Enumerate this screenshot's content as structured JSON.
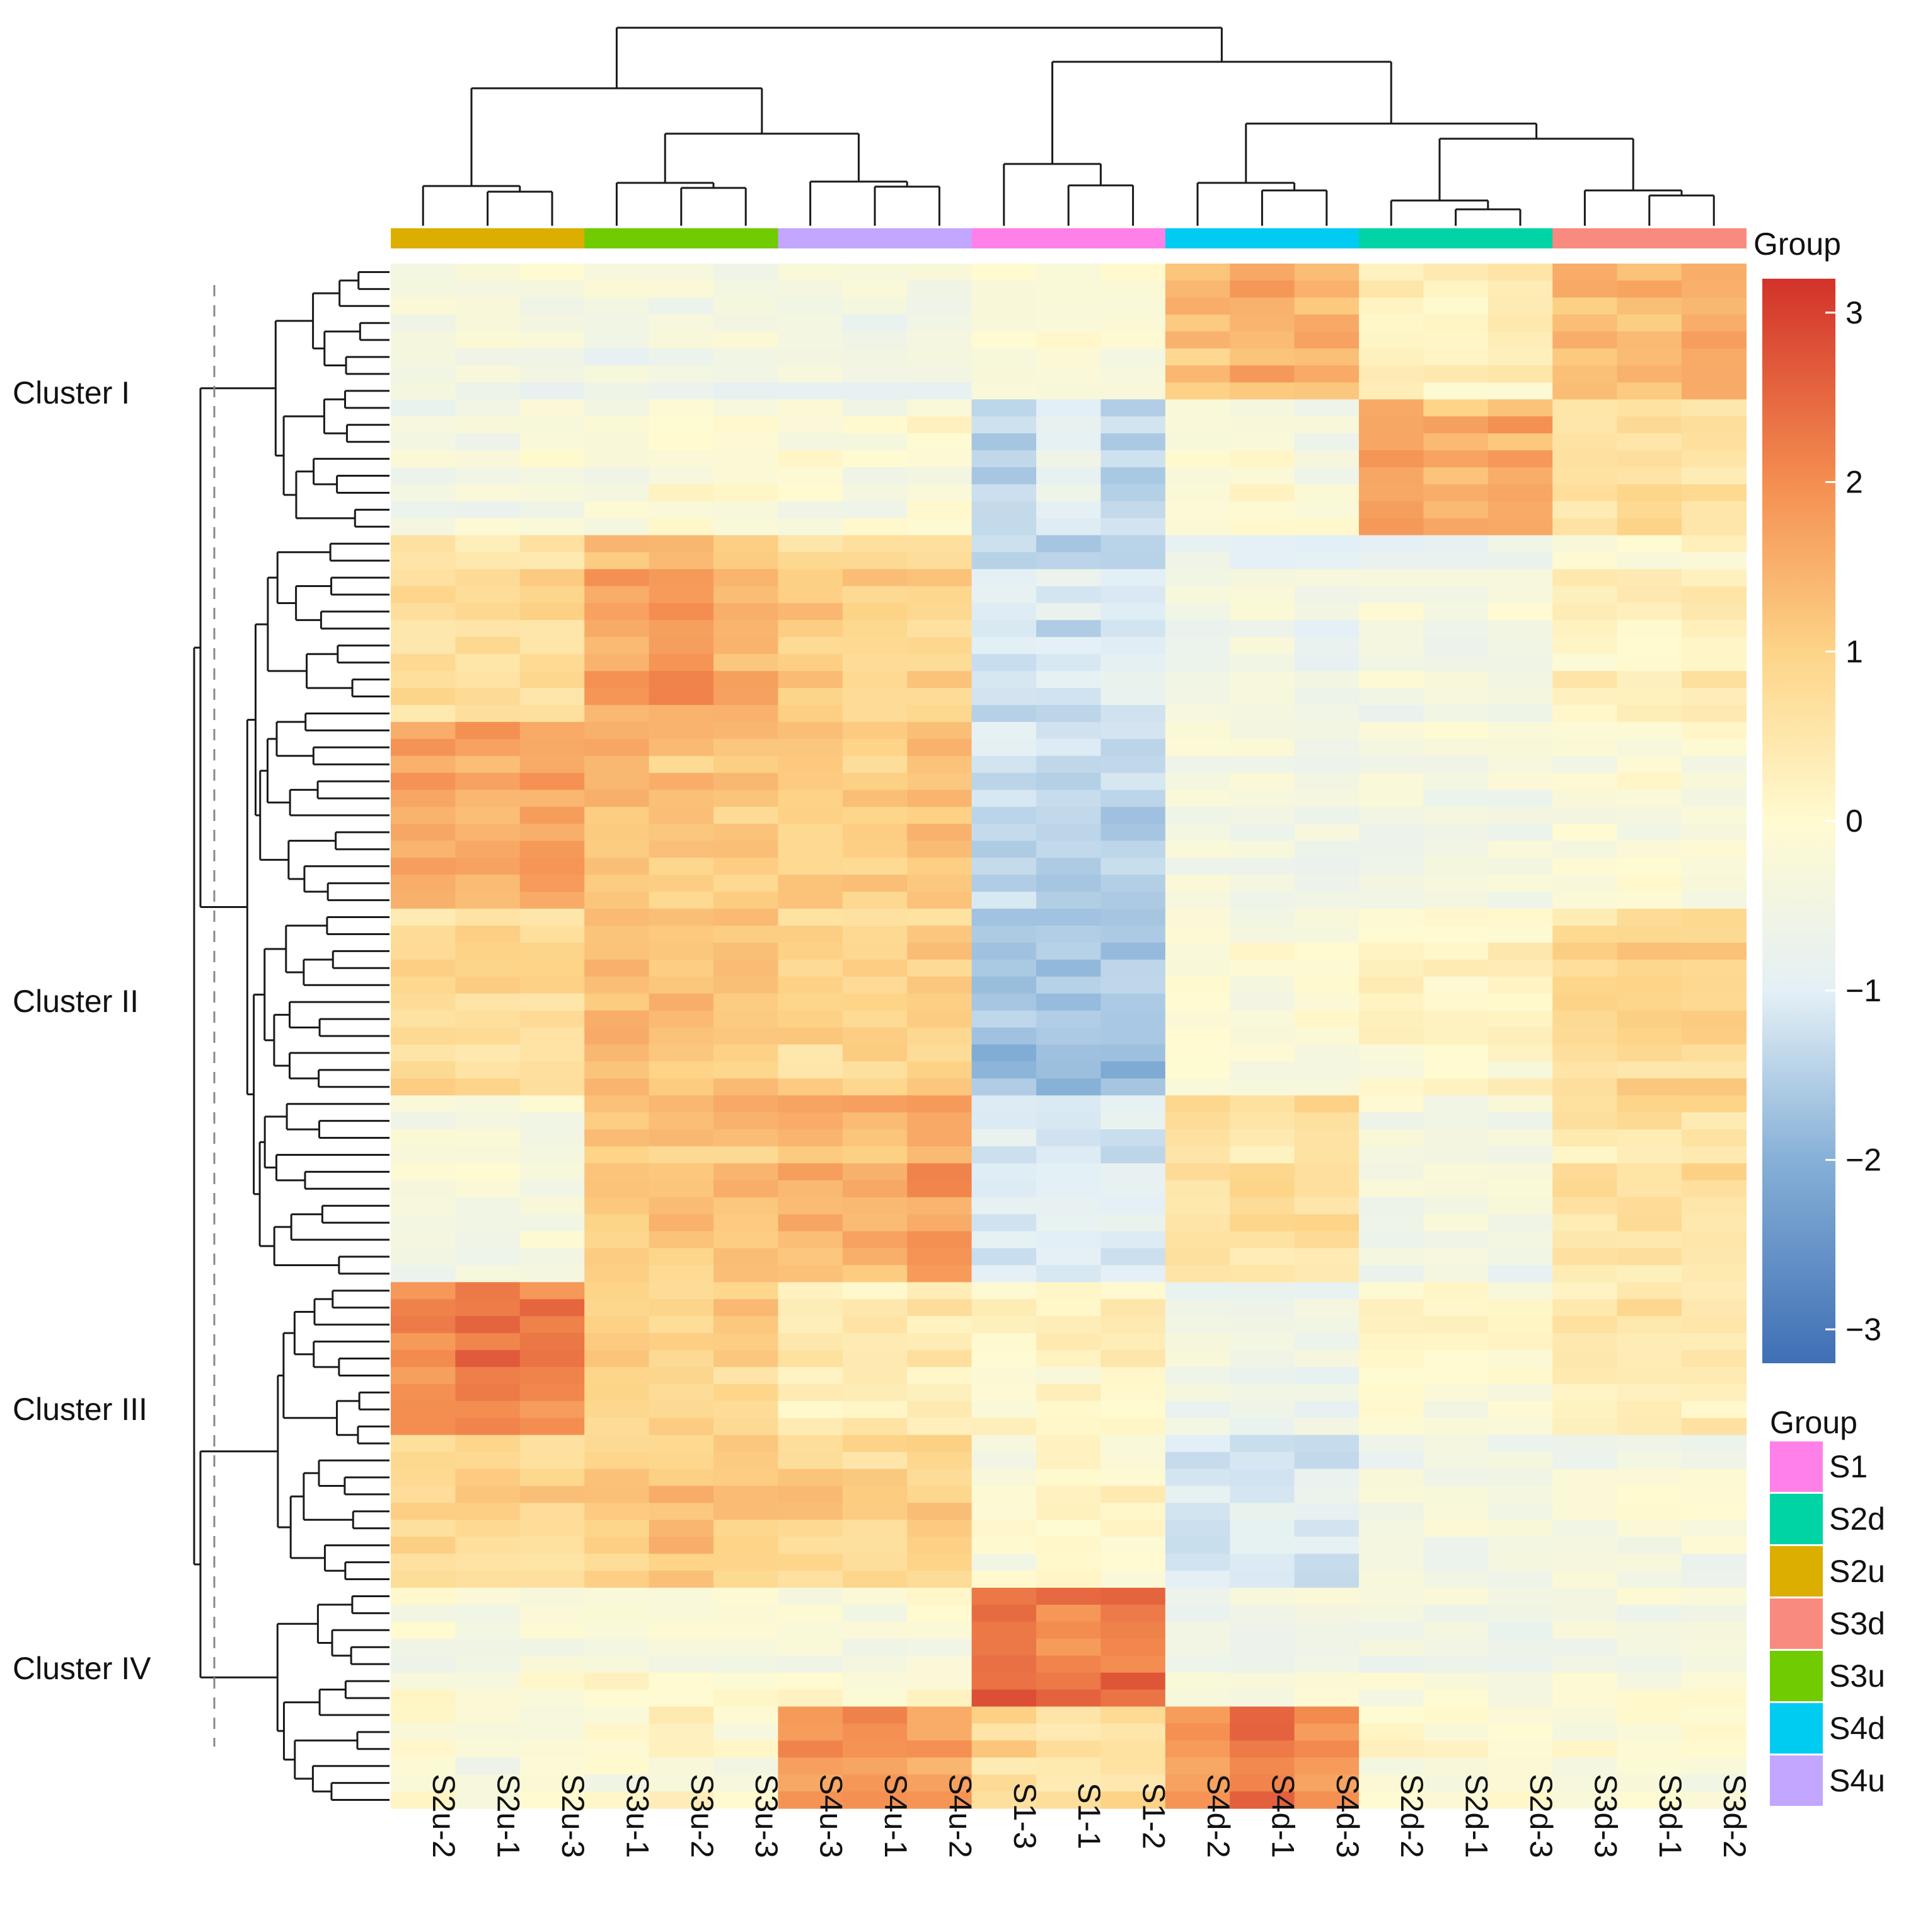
{
  "chart_data": {
    "type": "heatmap",
    "title": "",
    "columns": [
      "S2u-2",
      "S2u-1",
      "S2u-3",
      "S3u-1",
      "S3u-2",
      "S3u-3",
      "S4u-3",
      "S4u-1",
      "S4u-2",
      "S1-3",
      "S1-1",
      "S1-2",
      "S4d-2",
      "S4d-1",
      "S4d-3",
      "S2d-2",
      "S2d-1",
      "S2d-3",
      "S3d-3",
      "S3d-1",
      "S3d-2"
    ],
    "column_groups": [
      "S2u",
      "S2u",
      "S2u",
      "S3u",
      "S3u",
      "S3u",
      "S4u",
      "S4u",
      "S4u",
      "S1",
      "S1",
      "S1",
      "S4d",
      "S4d",
      "S4d",
      "S2d",
      "S2d",
      "S2d",
      "S3d",
      "S3d",
      "S3d"
    ],
    "annotation_title": "Group",
    "clusters": [
      {
        "label": "Cluster I",
        "rows": 16
      },
      {
        "label": "Cluster II",
        "rows": 44
      },
      {
        "label": "Cluster III",
        "rows": 18
      },
      {
        "label": "Cluster IV",
        "rows": 13
      }
    ],
    "row_count": 91,
    "cluster_means": {
      "Cluster I": [
        [
          -0.4,
          -0.4,
          -0.4,
          -0.5,
          -0.5,
          -0.5,
          -0.5,
          -0.5,
          -0.5,
          -0.2,
          -0.2,
          -0.2,
          1.3,
          1.5,
          1.4,
          0.3,
          0.2,
          0.3,
          1.3,
          1.4,
          1.5
        ],
        [
          -0.5,
          -0.4,
          -0.3,
          -0.2,
          -0.1,
          -0.1,
          -0.2,
          -0.3,
          -0.1,
          -1.4,
          -0.9,
          -1.5,
          -0.2,
          -0.1,
          -0.3,
          1.6,
          1.4,
          1.6,
          0.7,
          0.8,
          0.7
        ]
      ],
      "Cluster II": [
        [
          0.7,
          0.6,
          0.7,
          1.6,
          1.8,
          1.5,
          1.0,
          0.9,
          0.9,
          -1.1,
          -1.2,
          -1.1,
          -0.5,
          -0.5,
          -0.6,
          -0.5,
          -0.5,
          -0.5,
          0.2,
          0.2,
          0.3
        ],
        [
          1.6,
          1.5,
          1.6,
          1.2,
          1.1,
          1.0,
          1.0,
          1.0,
          1.2,
          -1.4,
          -1.5,
          -1.5,
          -0.5,
          -0.5,
          -0.6,
          -0.5,
          -0.5,
          -0.5,
          -0.3,
          -0.3,
          -0.3
        ],
        [
          0.8,
          0.8,
          0.8,
          1.3,
          1.3,
          1.3,
          0.9,
          1.0,
          1.0,
          -1.7,
          -1.8,
          -1.7,
          -0.1,
          -0.2,
          -0.2,
          0.1,
          0.1,
          0.1,
          0.8,
          0.9,
          0.9
        ],
        [
          -0.4,
          -0.4,
          -0.4,
          1.1,
          1.2,
          1.2,
          1.5,
          1.4,
          1.7,
          -1.1,
          -1.1,
          -1.1,
          0.6,
          0.6,
          0.7,
          -0.5,
          -0.5,
          -0.5,
          0.5,
          0.6,
          0.6
        ]
      ],
      "Cluster III": [
        [
          2.0,
          2.2,
          2.1,
          0.9,
          0.9,
          0.9,
          0.3,
          0.3,
          0.3,
          0.0,
          0.1,
          0.1,
          -0.6,
          -0.7,
          -0.7,
          -0.1,
          -0.1,
          -0.1,
          0.4,
          0.4,
          0.4
        ],
        [
          0.9,
          0.9,
          0.9,
          1.2,
          1.3,
          1.1,
          1.0,
          0.9,
          1.0,
          -0.1,
          0.2,
          0.1,
          -1.0,
          -1.1,
          -1.1,
          -0.4,
          -0.4,
          -0.4,
          -0.3,
          -0.3,
          -0.3
        ]
      ],
      "Cluster IV": [
        [
          -0.2,
          -0.3,
          -0.2,
          -0.1,
          -0.2,
          -0.3,
          -0.2,
          -0.2,
          -0.2,
          2.4,
          2.2,
          2.4,
          -0.5,
          -0.5,
          -0.5,
          -0.4,
          -0.4,
          -0.5,
          -0.3,
          -0.4,
          -0.3
        ],
        [
          -0.2,
          -0.3,
          -0.2,
          -0.1,
          0.1,
          -0.1,
          1.7,
          2.0,
          1.7,
          0.8,
          0.5,
          0.7,
          1.8,
          2.3,
          1.9,
          -0.1,
          -0.1,
          -0.1,
          -0.2,
          -0.2,
          -0.2
        ]
      ]
    },
    "color_scale": {
      "min": -3.2,
      "max": 3.2,
      "ticks": [
        3,
        2,
        1,
        0,
        -1,
        -2,
        -3
      ],
      "tick_labels": [
        "3",
        "2",
        "1",
        "0",
        "−1",
        "−2",
        "−3"
      ],
      "stops": [
        {
          "value": -3.2,
          "color": "#3f6fb5"
        },
        {
          "value": -2.0,
          "color": "#86b0d7"
        },
        {
          "value": -1.0,
          "color": "#e4f0f6"
        },
        {
          "value": 0.0,
          "color": "#fffad0"
        },
        {
          "value": 1.0,
          "color": "#fdd488"
        },
        {
          "value": 2.0,
          "color": "#f48e50"
        },
        {
          "value": 3.2,
          "color": "#d2322a"
        }
      ]
    },
    "group_legend": {
      "title": "Group",
      "items": [
        {
          "label": "S1",
          "color": "#ff80e8"
        },
        {
          "label": "S2d",
          "color": "#00d4a4"
        },
        {
          "label": "S2u",
          "color": "#dcae00"
        },
        {
          "label": "S3d",
          "color": "#f98a80"
        },
        {
          "label": "S3u",
          "color": "#70cc00"
        },
        {
          "label": "S4d",
          "color": "#00ccf2"
        },
        {
          "label": "S4u",
          "color": "#c3a6ff"
        }
      ]
    }
  }
}
